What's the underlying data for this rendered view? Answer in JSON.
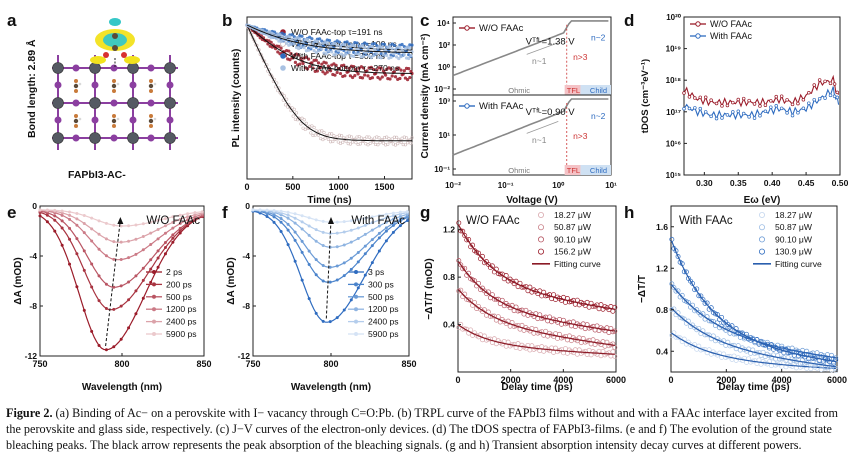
{
  "panel_letters": [
    "a",
    "b",
    "c",
    "d",
    "e",
    "f",
    "g",
    "h"
  ],
  "panel_a": {
    "side_label": "Bond length: 2.89 Å",
    "bottom_label": "FAPbI3-AC-",
    "colors": {
      "Pb": "#555a63",
      "I": "#8b3fa0",
      "C": "#5a4a3a",
      "N": "#c87a3a",
      "O": "#d83030",
      "H": "#d9d9d9",
      "density_a": "#36c7c7",
      "density_b": "#f2e21e"
    }
  },
  "caption": {
    "label": "Figure 2.",
    "text": "(a) Binding of Ac− on a perovskite with I− vacancy through C=O:Pb. (b) TRPL curve of the FAPbI3 films without and with a FAAc interface layer excited from the perovskite and glass side, respectively. (c) J−V curves of the electron-only devices. (d) The tDOS spectra of FAPbI3-films. (e and f) The evolution of the ground state bleaching peaks. The black arrow represents the peak absorption of the bleaching signals. (g and h) Transient absorption intensity decay curves at different powers."
  },
  "chart_data": [
    {
      "id": "b",
      "type": "scatter",
      "xlabel": "Time (ns)",
      "ylabel": "PL intensity (counts)",
      "xlim": [
        0,
        1800
      ],
      "xticks": [
        0,
        500,
        1000,
        1500
      ],
      "series": [
        {
          "name": "W/O FAAc-top τ=191 ns",
          "color": "#9b1c2a",
          "tau": 191,
          "end": 0.22
        },
        {
          "name": "W/O FAAc-bottom τ=100 ns",
          "color": "#c9b2b2",
          "tau": 100,
          "end": 0.02
        },
        {
          "name": "With FAAc-top τ =302 ns",
          "color": "#2f6cc0",
          "tau": 302,
          "end": 0.45
        },
        {
          "name": "With FAAc-bottom τ =270 ns",
          "color": "#a8c1e2",
          "tau": 270,
          "end": 0.42
        }
      ]
    },
    {
      "id": "c",
      "type": "line",
      "xlabel": "Voltage (V)",
      "ylabel": "Current density (mA cm⁻²)",
      "xticks": [
        "10⁻²",
        "10⁻¹",
        "10⁰",
        "10¹"
      ],
      "top": {
        "series_name": "W/O FAAc",
        "color": "#9b1c2a",
        "vtfl": "Vᵀᶠᴸ=1.38 V",
        "regions": [
          "Ohmic",
          "TFL",
          "Child"
        ],
        "slopes": [
          "n~1",
          "n>3",
          "n~2"
        ],
        "yticks": [
          "10⁴",
          "10²",
          "10⁰",
          "10⁻²"
        ]
      },
      "bottom": {
        "series_name": "With FAAc",
        "color": "#2f6cc0",
        "vtfl": "Vᵀᶠᴸ=0.90 V",
        "regions": [
          "Ohmic",
          "TFL",
          "Child"
        ],
        "slopes": [
          "n~1",
          "n>3",
          "n~2"
        ],
        "yticks": [
          "10³",
          "10¹",
          "10⁻¹"
        ]
      }
    },
    {
      "id": "d",
      "type": "line",
      "xlabel": "Eω (eV)",
      "ylabel": "tDOS (cm⁻³eV⁻¹)",
      "xlim": [
        0.27,
        0.5
      ],
      "xticks": [
        "0.30",
        "0.35",
        "0.40",
        "0.45",
        "0.50"
      ],
      "ylim_log": [
        15,
        20
      ],
      "yticks": [
        "10²⁰",
        "10¹⁹",
        "10¹⁸",
        "10¹⁷",
        "10¹⁶",
        "10¹⁵"
      ],
      "series": [
        {
          "name": "W/O FAAc",
          "color": "#9b1c2a",
          "x": [
            0.27,
            0.29,
            0.31,
            0.33,
            0.35,
            0.37,
            0.39,
            0.41,
            0.43,
            0.45,
            0.47,
            0.49,
            0.5
          ],
          "log_y": [
            17.7,
            17.4,
            17.3,
            17.3,
            17.3,
            17.3,
            17.3,
            17.4,
            17.3,
            17.5,
            17.9,
            18.0,
            17.3
          ]
        },
        {
          "name": "With FAAc",
          "color": "#2f6cc0",
          "x": [
            0.27,
            0.29,
            0.31,
            0.33,
            0.35,
            0.37,
            0.39,
            0.41,
            0.43,
            0.45,
            0.47,
            0.49,
            0.5
          ],
          "log_y": [
            17.2,
            17.0,
            16.9,
            16.9,
            16.9,
            16.9,
            17.0,
            17.1,
            17.0,
            17.1,
            17.4,
            17.7,
            17.1
          ]
        }
      ]
    },
    {
      "id": "e",
      "type": "line",
      "title": "W/O FAAc",
      "xlabel": "Wavelength (nm)",
      "ylabel": "ΔA (mOD)",
      "xlim": [
        750,
        850
      ],
      "ylim": [
        -12,
        0
      ],
      "xticks": [
        "750",
        "800",
        "850"
      ],
      "yticks": [
        "0",
        "-4",
        "-8",
        "-12"
      ],
      "series": [
        {
          "name": "2 ps",
          "peak": -11.2,
          "center": 790,
          "color": "#9b1c2a"
        },
        {
          "name": "200 ps",
          "peak": -8.0,
          "center": 793,
          "color": "#a83340"
        },
        {
          "name": "500 ps",
          "peak": -6.2,
          "center": 795,
          "color": "#b95563"
        },
        {
          "name": "1200 ps",
          "peak": -4.0,
          "center": 797,
          "color": "#cb7a86"
        },
        {
          "name": "2400 ps",
          "peak": -2.6,
          "center": 798,
          "color": "#dba2a9"
        },
        {
          "name": "5900 ps",
          "peak": -1.3,
          "center": 800,
          "color": "#ebc9cc"
        }
      ]
    },
    {
      "id": "f",
      "type": "line",
      "title": "With FAAc",
      "xlabel": "Wavelength (nm)",
      "ylabel": "ΔA (mOD)",
      "xlim": [
        750,
        850
      ],
      "ylim": [
        -12,
        0
      ],
      "xticks": [
        "750",
        "800",
        "850"
      ],
      "yticks": [
        "0",
        "-4",
        "-8",
        "-12"
      ],
      "series": [
        {
          "name": "3 ps",
          "peak": -9.0,
          "center": 797,
          "color": "#2f6cc0"
        },
        {
          "name": "300 ps",
          "peak": -5.8,
          "center": 798,
          "color": "#4a83cb"
        },
        {
          "name": "500 ps",
          "peak": -4.6,
          "center": 799,
          "color": "#6b9bd6"
        },
        {
          "name": "1200 ps",
          "peak": -3.0,
          "center": 800,
          "color": "#8fb4e1"
        },
        {
          "name": "2400 ps",
          "peak": -1.9,
          "center": 800,
          "color": "#b4cdec"
        },
        {
          "name": "5900 ps",
          "peak": -1.0,
          "center": 801,
          "color": "#d5e3f5"
        }
      ]
    },
    {
      "id": "g",
      "type": "scatter",
      "title": "W/O FAAc",
      "xlabel": "Delay time (ps)",
      "ylabel": "−ΔT/T (mOD)",
      "xlim": [
        0,
        6000
      ],
      "ylim": [
        0,
        1.4
      ],
      "xticks": [
        "0",
        "2000",
        "4000",
        "6000"
      ],
      "yticks": [
        "0.4",
        "0.8",
        "1.2"
      ],
      "series": [
        {
          "name": "18.27 μW",
          "a": 0.22,
          "b": 0.18,
          "tau": 1200,
          "color": "#d9a9ae"
        },
        {
          "name": "50.87 μW",
          "a": 0.4,
          "b": 0.3,
          "tau": 1300,
          "color": "#c98088"
        },
        {
          "name": "90.10 μW",
          "a": 0.52,
          "b": 0.42,
          "tau": 1300,
          "color": "#b55360"
        },
        {
          "name": "156.2 μW",
          "a": 0.7,
          "b": 0.55,
          "tau": 1400,
          "color": "#9b1c2a"
        }
      ],
      "fit_label": "Fitting curve",
      "fit_color": "#8b1a26"
    },
    {
      "id": "h",
      "type": "scatter",
      "title": "With FAAc",
      "xlabel": "Delay time (ps)",
      "ylabel": "−ΔT/T",
      "xlim": [
        0,
        6000
      ],
      "ylim": [
        0.2,
        1.8
      ],
      "xticks": [
        "0",
        "2000",
        "4000",
        "6000"
      ],
      "yticks": [
        "0.4",
        "0.8",
        "1.2",
        "1.6"
      ],
      "series": [
        {
          "name": "18.27 μW",
          "a": 0.3,
          "b": 0.28,
          "tau": 1500,
          "color": "#c4d6ee"
        },
        {
          "name": "50.87 μW",
          "a": 0.42,
          "b": 0.4,
          "tau": 1600,
          "color": "#9dbde4"
        },
        {
          "name": "90.10 μW",
          "a": 0.5,
          "b": 0.55,
          "tau": 1700,
          "color": "#6f9dd6"
        },
        {
          "name": "130.9 μW",
          "a": 0.46,
          "b": 1.02,
          "tau": 1500,
          "color": "#2f6cc0"
        }
      ],
      "fit_label": "Fitting curve",
      "fit_color": "#2a5fae"
    }
  ]
}
